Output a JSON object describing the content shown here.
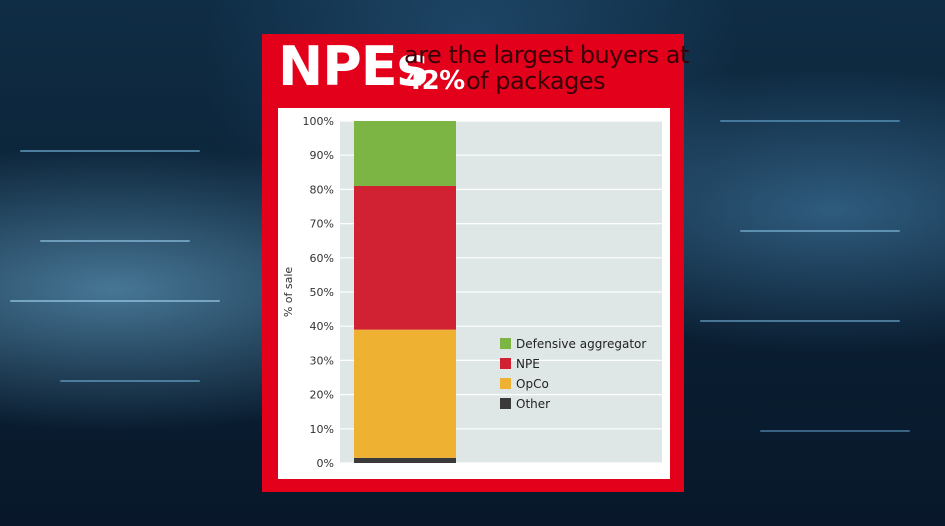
{
  "title": {
    "big": "NPEs",
    "line1": "are the largest buyers at",
    "pct": "42%",
    "line2": "of packages"
  },
  "colors": {
    "card": "#e3001b",
    "plot_bg": "#dfe6e6",
    "defensive_aggregator": "#7db544",
    "npe": "#d02232",
    "opco": "#efb132",
    "other": "#3a3a3a"
  },
  "chart_data": {
    "type": "bar",
    "stacked": true,
    "categories": [
      ""
    ],
    "series": [
      {
        "name": "Other",
        "values": [
          1.5
        ],
        "color": "#3a3a3a"
      },
      {
        "name": "OpCo",
        "values": [
          37.5
        ],
        "color": "#efb132"
      },
      {
        "name": "NPE",
        "values": [
          42
        ],
        "color": "#d02232"
      },
      {
        "name": "Defensive aggregator",
        "values": [
          19
        ],
        "color": "#7db544"
      }
    ],
    "legend_order": [
      "Defensive aggregator",
      "NPE",
      "OpCo",
      "Other"
    ],
    "ylabel": "% of sale",
    "ylim": [
      0,
      100
    ],
    "yticks": [
      "0%",
      "10%",
      "20%",
      "30%",
      "40%",
      "50%",
      "60%",
      "70%",
      "80%",
      "90%",
      "100%"
    ],
    "grid": true,
    "legend_position": "right"
  }
}
